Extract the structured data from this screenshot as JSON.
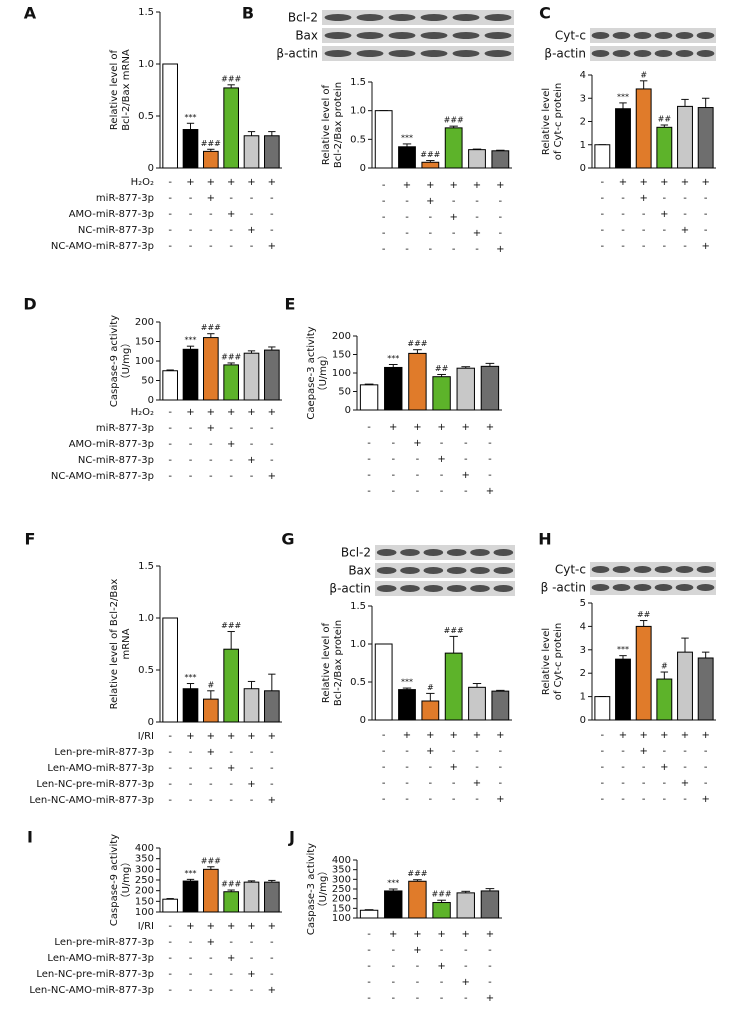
{
  "chart_data": [
    {
      "type": "bar",
      "letter": "A",
      "ylabel": [
        "Relative level of",
        "Bcl-2/Bax mRNA"
      ],
      "values": [
        1.0,
        0.37,
        0.16,
        0.77,
        0.31,
        0.31
      ],
      "errors": [
        0,
        0.06,
        0.02,
        0.03,
        0.04,
        0.04
      ],
      "annotations": [
        null,
        "***",
        "###",
        "###",
        null,
        null
      ],
      "colors": [
        "#ffffff",
        "#000000",
        "#e07b2a",
        "#5db32a",
        "#c8c8c8",
        "#6e6e6e"
      ],
      "ylim": [
        0,
        1.5
      ],
      "yticks": [
        0,
        0.5,
        {
          "value": 1,
          "label": "1.0"
        },
        1.5
      ],
      "conditions": [
        {
          "label": "H₂O₂",
          "signs": [
            "-",
            "+",
            "+",
            "+",
            "+",
            "+"
          ]
        },
        {
          "label": "miR-877-3p",
          "signs": [
            "-",
            "-",
            "+",
            "-",
            "-",
            "-"
          ]
        },
        {
          "label": "AMO-miR-877-3p",
          "signs": [
            "-",
            "-",
            "-",
            "+",
            "-",
            "-"
          ]
        },
        {
          "label": "NC-miR-877-3p",
          "signs": [
            "-",
            "-",
            "-",
            "-",
            "+",
            "-"
          ]
        },
        {
          "label": "NC-AMO-miR-877-3p",
          "signs": [
            "-",
            "-",
            "-",
            "-",
            "-",
            "+"
          ]
        }
      ]
    },
    {
      "type": "bar",
      "letter": "B",
      "blots": [
        "Bcl-2",
        "Bax",
        "β-actin"
      ],
      "ylabel": [
        "Relative level of",
        "Bcl-2/Bax protein"
      ],
      "values": [
        1.0,
        0.37,
        0.1,
        0.7,
        0.32,
        0.3
      ],
      "errors": [
        0,
        0.05,
        0.03,
        0.03,
        0.01,
        0.01
      ],
      "annotations": [
        null,
        "***",
        "###",
        "###",
        null,
        null
      ],
      "colors": [
        "#ffffff",
        "#000000",
        "#e07b2a",
        "#5db32a",
        "#c8c8c8",
        "#6e6e6e"
      ],
      "ylim": [
        0,
        1.5
      ],
      "yticks": [
        0,
        0.5,
        {
          "value": 1,
          "label": "1.0"
        },
        1.5
      ],
      "conditions": [
        {
          "signs": [
            "-",
            "+",
            "+",
            "+",
            "+",
            "+"
          ]
        },
        {
          "signs": [
            "-",
            "-",
            "+",
            "-",
            "-",
            "-"
          ]
        },
        {
          "signs": [
            "-",
            "-",
            "-",
            "+",
            "-",
            "-"
          ]
        },
        {
          "signs": [
            "-",
            "-",
            "-",
            "-",
            "+",
            "-"
          ]
        },
        {
          "signs": [
            "-",
            "-",
            "-",
            "-",
            "-",
            "+"
          ]
        }
      ]
    },
    {
      "type": "bar",
      "letter": "C",
      "blots": [
        "Cyt-c",
        "β-actin"
      ],
      "ylabel": [
        "Relative level",
        "of Cyt-c protein"
      ],
      "values": [
        1,
        2.55,
        3.4,
        1.75,
        2.65,
        2.6
      ],
      "errors": [
        0,
        0.25,
        0.35,
        0.1,
        0.3,
        0.4
      ],
      "annotations": [
        null,
        "***",
        "#",
        "##",
        null,
        null
      ],
      "colors": [
        "#ffffff",
        "#000000",
        "#e07b2a",
        "#5db32a",
        "#c8c8c8",
        "#6e6e6e"
      ],
      "ylim": [
        0,
        4
      ],
      "yticks": [
        0,
        1,
        2,
        3,
        4
      ],
      "conditions": [
        {
          "signs": [
            "-",
            "+",
            "+",
            "+",
            "+",
            "+"
          ]
        },
        {
          "signs": [
            "-",
            "-",
            "+",
            "-",
            "-",
            "-"
          ]
        },
        {
          "signs": [
            "-",
            "-",
            "-",
            "+",
            "-",
            "-"
          ]
        },
        {
          "signs": [
            "-",
            "-",
            "-",
            "-",
            "+",
            "-"
          ]
        },
        {
          "signs": [
            "-",
            "-",
            "-",
            "-",
            "-",
            "+"
          ]
        }
      ]
    },
    {
      "type": "bar",
      "letter": "D",
      "ylabel": [
        "Caspase-9 activity",
        "（U/mg）"
      ],
      "values": [
        75,
        130,
        160,
        90,
        120,
        128
      ],
      "errors": [
        2,
        8,
        10,
        5,
        6,
        8
      ],
      "annotations": [
        null,
        "***",
        "###",
        "###",
        null,
        null
      ],
      "colors": [
        "#ffffff",
        "#000000",
        "#e07b2a",
        "#5db32a",
        "#c8c8c8",
        "#6e6e6e"
      ],
      "ylim": [
        0,
        200
      ],
      "yticks": [
        0,
        50,
        100,
        150,
        200
      ],
      "conditions": [
        {
          "label": "H₂O₂",
          "signs": [
            "-",
            "+",
            "+",
            "+",
            "+",
            "+"
          ]
        },
        {
          "label": "miR-877-3p",
          "signs": [
            "-",
            "-",
            "+",
            "-",
            "-",
            "-"
          ]
        },
        {
          "label": "AMO-miR-877-3p",
          "signs": [
            "-",
            "-",
            "-",
            "+",
            "-",
            "-"
          ]
        },
        {
          "label": "NC-miR-877-3p",
          "signs": [
            "-",
            "-",
            "-",
            "-",
            "+",
            "-"
          ]
        },
        {
          "label": "NC-AMO-miR-877-3p",
          "signs": [
            "-",
            "-",
            "-",
            "-",
            "-",
            "+"
          ]
        }
      ]
    },
    {
      "type": "bar",
      "letter": "E",
      "ylabel": [
        "Caepase-3 activity",
        "（U/mg）"
      ],
      "values": [
        68,
        115,
        153,
        90,
        113,
        118
      ],
      "errors": [
        2,
        8,
        10,
        6,
        4,
        8
      ],
      "annotations": [
        null,
        "***",
        "###",
        "##",
        null,
        null
      ],
      "colors": [
        "#ffffff",
        "#000000",
        "#e07b2a",
        "#5db32a",
        "#c8c8c8",
        "#6e6e6e"
      ],
      "ylim": [
        0,
        200
      ],
      "yticks": [
        0,
        50,
        100,
        150,
        200
      ],
      "conditions": [
        {
          "signs": [
            "-",
            "+",
            "+",
            "+",
            "+",
            "+"
          ]
        },
        {
          "signs": [
            "-",
            "-",
            "+",
            "-",
            "-",
            "-"
          ]
        },
        {
          "signs": [
            "-",
            "-",
            "-",
            "+",
            "-",
            "-"
          ]
        },
        {
          "signs": [
            "-",
            "-",
            "-",
            "-",
            "+",
            "-"
          ]
        },
        {
          "signs": [
            "-",
            "-",
            "-",
            "-",
            "-",
            "+"
          ]
        }
      ]
    },
    {
      "type": "bar",
      "letter": "F",
      "ylabel": [
        "Relative level of Bcl-2/Bax",
        "mRNA"
      ],
      "values": [
        1.0,
        0.32,
        0.22,
        0.7,
        0.32,
        0.3
      ],
      "errors": [
        0,
        0.05,
        0.08,
        0.17,
        0.07,
        0.16
      ],
      "annotations": [
        null,
        "***",
        "#",
        "###",
        null,
        null
      ],
      "colors": [
        "#ffffff",
        "#000000",
        "#e07b2a",
        "#5db32a",
        "#c8c8c8",
        "#6e6e6e"
      ],
      "ylim": [
        0,
        1.5
      ],
      "yticks": [
        0,
        0.5,
        {
          "value": 1,
          "label": "1.0"
        },
        1.5
      ],
      "conditions": [
        {
          "label": "I/RI",
          "signs": [
            "-",
            "+",
            "+",
            "+",
            "+",
            "+"
          ]
        },
        {
          "label": "Len-pre-miR-877-3p",
          "signs": [
            "-",
            "-",
            "+",
            "-",
            "-",
            "-"
          ]
        },
        {
          "label": "Len-AMO-miR-877-3p",
          "signs": [
            "-",
            "-",
            "-",
            "+",
            "-",
            "-"
          ]
        },
        {
          "label": "Len-NC-pre-miR-877-3p",
          "signs": [
            "-",
            "-",
            "-",
            "-",
            "+",
            "-"
          ]
        },
        {
          "label": "Len-NC-AMO-miR-877-3p",
          "signs": [
            "-",
            "-",
            "-",
            "-",
            "-",
            "+"
          ]
        }
      ]
    },
    {
      "type": "bar",
      "letter": "G",
      "blots": [
        "Bcl-2",
        "Bax",
        "β-actin"
      ],
      "ylabel": [
        "Relative level of",
        "Bcl-2/Bax protein"
      ],
      "values": [
        1.0,
        0.4,
        0.25,
        0.88,
        0.43,
        0.38
      ],
      "errors": [
        0,
        0.02,
        0.1,
        0.22,
        0.05,
        0.01
      ],
      "annotations": [
        null,
        "***",
        "#",
        "###",
        null,
        null
      ],
      "colors": [
        "#ffffff",
        "#000000",
        "#e07b2a",
        "#5db32a",
        "#c8c8c8",
        "#6e6e6e"
      ],
      "ylim": [
        0,
        1.5
      ],
      "yticks": [
        0,
        0.5,
        {
          "value": 1,
          "label": "1.0"
        },
        1.5
      ],
      "conditions": [
        {
          "signs": [
            "-",
            "+",
            "+",
            "+",
            "+",
            "+"
          ]
        },
        {
          "signs": [
            "-",
            "-",
            "+",
            "-",
            "-",
            "-"
          ]
        },
        {
          "signs": [
            "-",
            "-",
            "-",
            "+",
            "-",
            "-"
          ]
        },
        {
          "signs": [
            "-",
            "-",
            "-",
            "-",
            "+",
            "-"
          ]
        },
        {
          "signs": [
            "-",
            "-",
            "-",
            "-",
            "-",
            "+"
          ]
        }
      ]
    },
    {
      "type": "bar",
      "letter": "H",
      "blots": [
        "Cyt-c",
        "β -actin"
      ],
      "ylabel": [
        "Relative level",
        "of Cyt-c protein"
      ],
      "values": [
        1,
        2.6,
        4.0,
        1.75,
        2.9,
        2.65
      ],
      "errors": [
        0,
        0.15,
        0.25,
        0.3,
        0.6,
        0.25
      ],
      "annotations": [
        null,
        "***",
        "##",
        "#",
        null,
        null
      ],
      "colors": [
        "#ffffff",
        "#000000",
        "#e07b2a",
        "#5db32a",
        "#c8c8c8",
        "#6e6e6e"
      ],
      "ylim": [
        0,
        5
      ],
      "yticks": [
        0,
        1,
        2,
        3,
        4,
        5
      ],
      "conditions": [
        {
          "signs": [
            "-",
            "+",
            "+",
            "+",
            "+",
            "+"
          ]
        },
        {
          "signs": [
            "-",
            "-",
            "+",
            "-",
            "-",
            "-"
          ]
        },
        {
          "signs": [
            "-",
            "-",
            "-",
            "+",
            "-",
            "-"
          ]
        },
        {
          "signs": [
            "-",
            "-",
            "-",
            "-",
            "+",
            "-"
          ]
        },
        {
          "signs": [
            "-",
            "-",
            "-",
            "-",
            "-",
            "+"
          ]
        }
      ]
    },
    {
      "type": "bar",
      "letter": "I",
      "ylabel": [
        "Caspase-9 activity",
        "（U/mg）"
      ],
      "values": [
        160,
        245,
        300,
        195,
        240,
        240
      ],
      "errors": [
        3,
        8,
        12,
        8,
        6,
        8
      ],
      "annotations": [
        null,
        "***",
        "###",
        "###",
        null,
        null
      ],
      "colors": [
        "#ffffff",
        "#000000",
        "#e07b2a",
        "#5db32a",
        "#c8c8c8",
        "#6e6e6e"
      ],
      "ylim": [
        100,
        400
      ],
      "yticks": [
        100,
        150,
        200,
        250,
        300,
        350,
        400
      ],
      "conditions": [
        {
          "label": "I/RI",
          "signs": [
            "-",
            "+",
            "+",
            "+",
            "+",
            "+"
          ]
        },
        {
          "label": "Len-pre-miR-877-3p",
          "signs": [
            "-",
            "-",
            "+",
            "-",
            "-",
            "-"
          ]
        },
        {
          "label": "Len-AMO-miR-877-3p",
          "signs": [
            "-",
            "-",
            "-",
            "+",
            "-",
            "-"
          ]
        },
        {
          "label": "Len-NC-pre-miR-877-3p",
          "signs": [
            "-",
            "-",
            "-",
            "-",
            "+",
            "-"
          ]
        },
        {
          "label": "Len-NC-AMO-miR-877-3p",
          "signs": [
            "-",
            "-",
            "-",
            "-",
            "-",
            "+"
          ]
        }
      ]
    },
    {
      "type": "bar",
      "letter": "J",
      "ylabel": [
        "Caspase-3 activity",
        "（U/mg）"
      ],
      "values": [
        140,
        240,
        290,
        180,
        230,
        240
      ],
      "errors": [
        3,
        10,
        8,
        12,
        8,
        12
      ],
      "annotations": [
        null,
        "***",
        "###",
        "###",
        null,
        null
      ],
      "colors": [
        "#ffffff",
        "#000000",
        "#e07b2a",
        "#5db32a",
        "#c8c8c8",
        "#6e6e6e"
      ],
      "ylim": [
        100,
        400
      ],
      "yticks": [
        100,
        150,
        200,
        250,
        300,
        350,
        400
      ],
      "conditions": [
        {
          "signs": [
            "-",
            "+",
            "+",
            "+",
            "+",
            "+"
          ]
        },
        {
          "signs": [
            "-",
            "-",
            "+",
            "-",
            "-",
            "-"
          ]
        },
        {
          "signs": [
            "-",
            "-",
            "-",
            "+",
            "-",
            "-"
          ]
        },
        {
          "signs": [
            "-",
            "-",
            "-",
            "-",
            "+",
            "-"
          ]
        },
        {
          "signs": [
            "-",
            "-",
            "-",
            "-",
            "-",
            "+"
          ]
        }
      ]
    }
  ]
}
